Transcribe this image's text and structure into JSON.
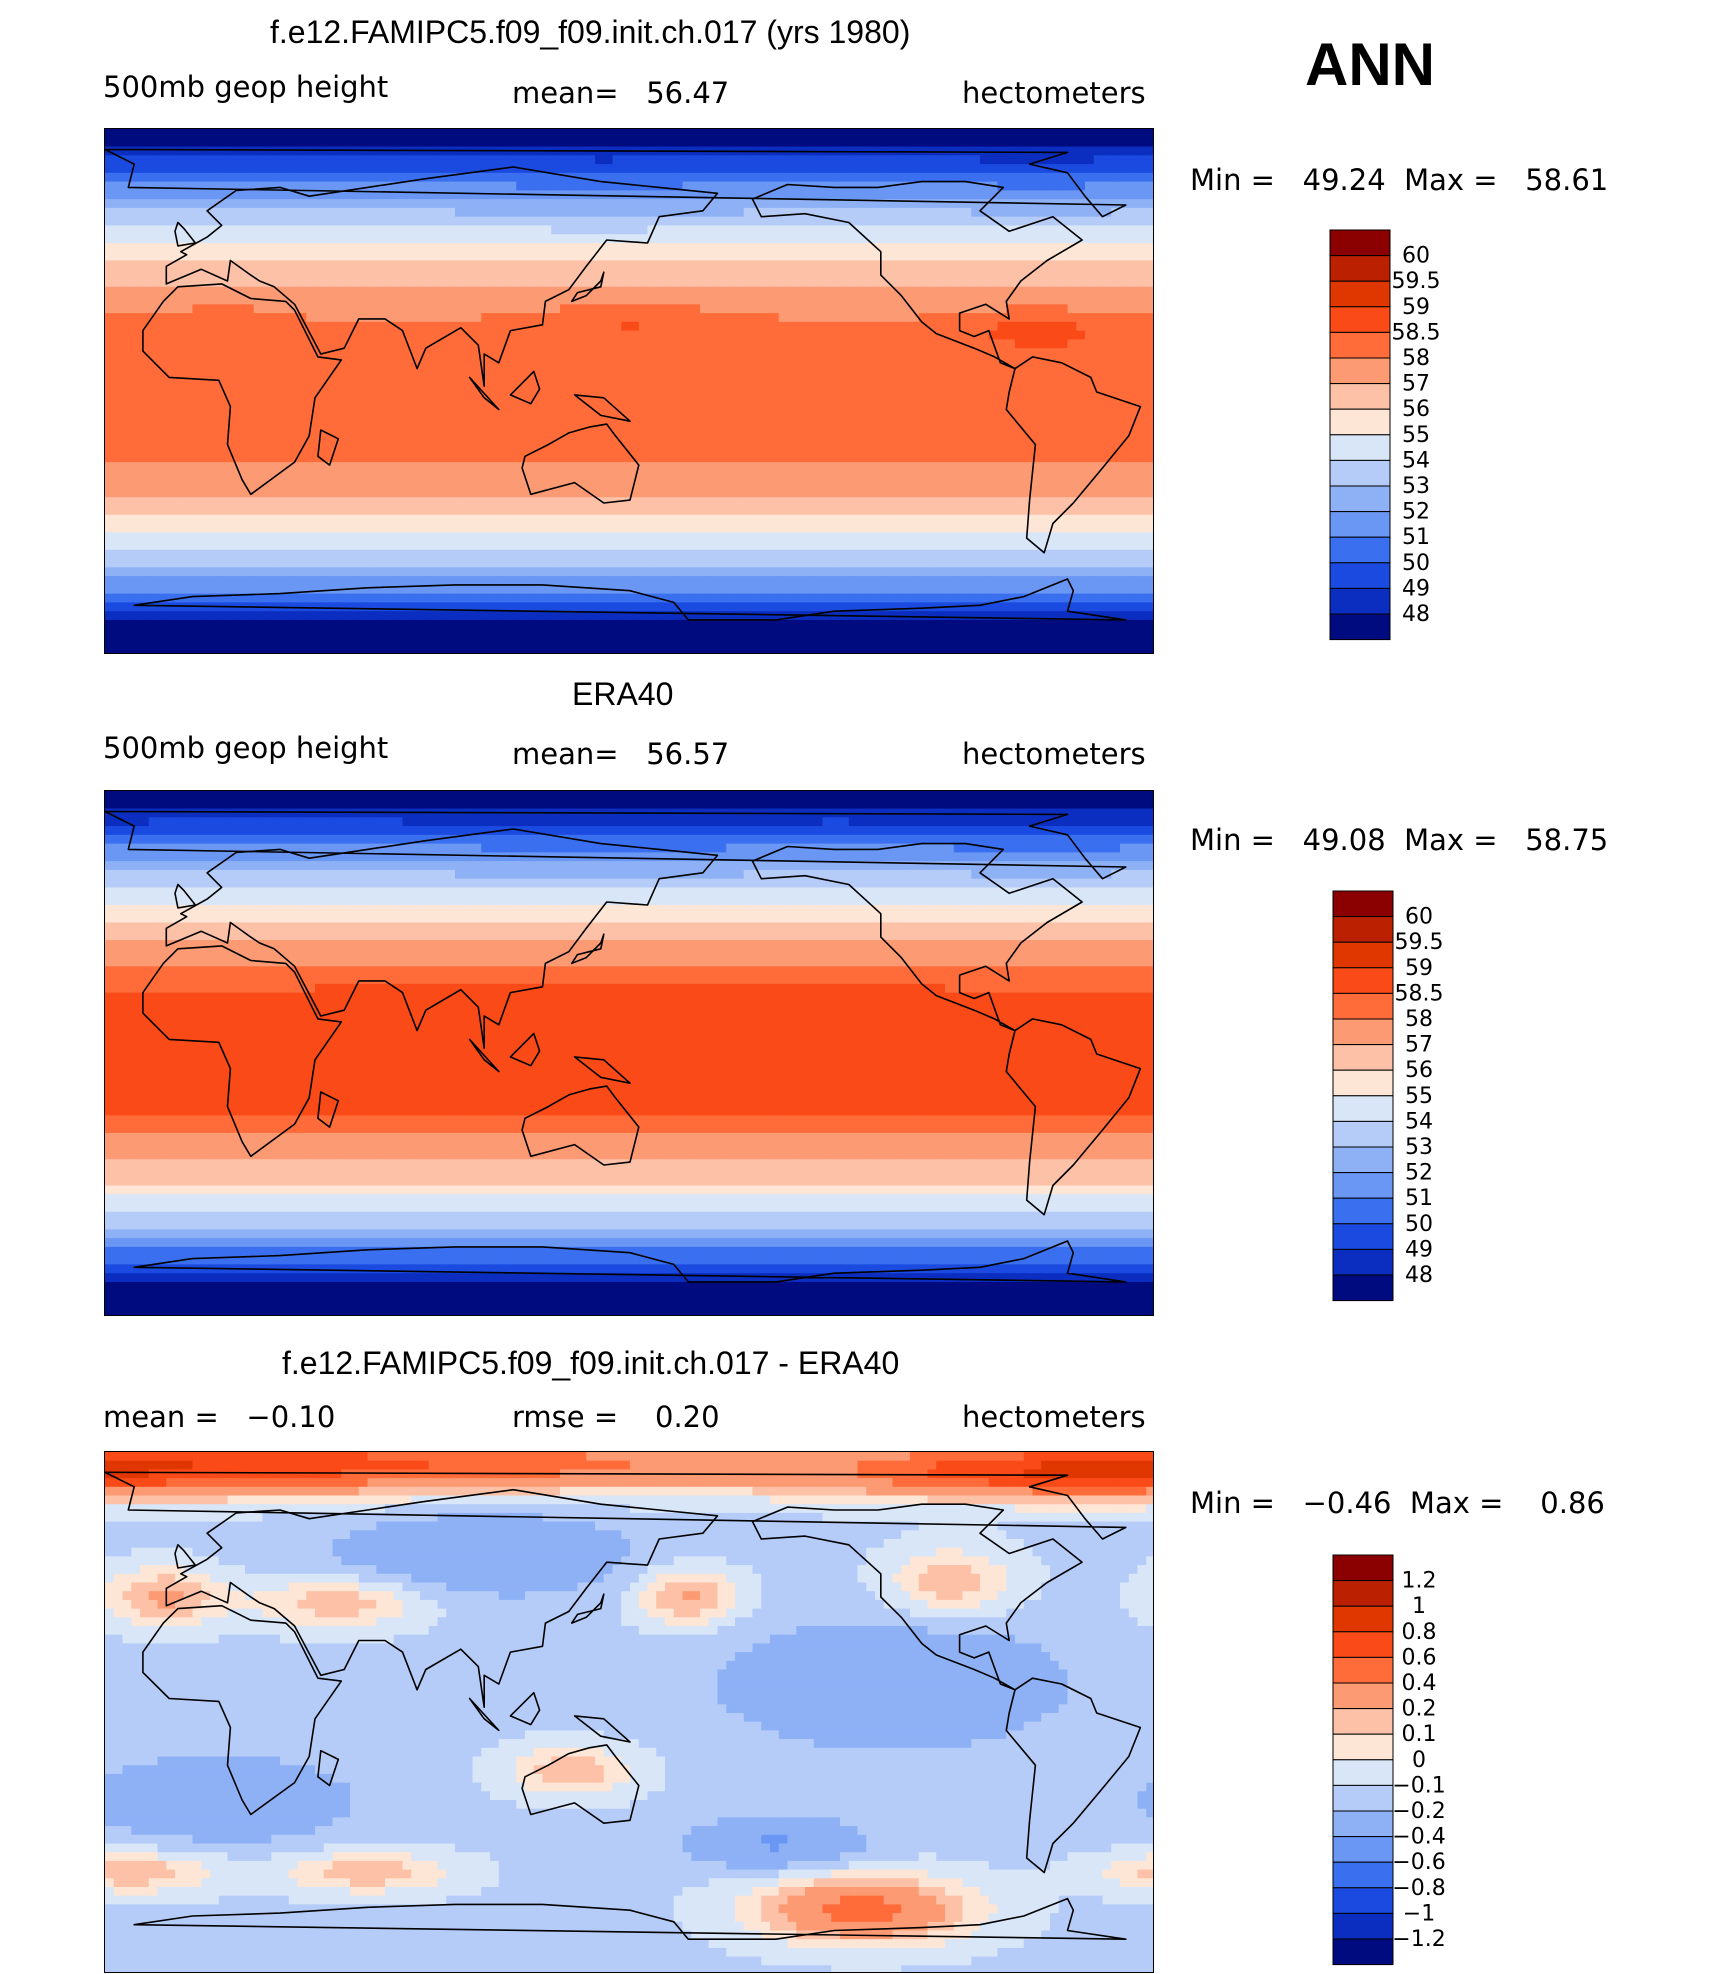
{
  "ann_label": "ANN",
  "chart_data": [
    {
      "type": "heatmap",
      "title": "f.e12.FAMIPC5.f09_f09.init.ch.017 (yrs 1980)",
      "left_label": "500mb geop height",
      "center_label": "mean=   56.47",
      "units": "hectometers",
      "minmax_label": "Min =   49.24  Max =   58.61",
      "colorbar": {
        "levels": [
          "60",
          "59.5",
          "59",
          "58.5",
          "58",
          "57",
          "56",
          "55",
          "54",
          "53",
          "52",
          "51",
          "50",
          "49",
          "48"
        ],
        "colors": [
          "#8b0000",
          "#bb2000",
          "#e03600",
          "#fa4a18",
          "#ff6c3a",
          "#fb9a73",
          "#fcc1a6",
          "#fde6d6",
          "#d8e6f8",
          "#b5ccf8",
          "#8eb1f6",
          "#6a96f4",
          "#3a6ff0",
          "#1a4ae0",
          "#0b2ec0",
          "#000b80"
        ]
      },
      "field": "model"
    },
    {
      "type": "heatmap",
      "title": "ERA40",
      "left_label": "500mb geop height",
      "center_label": "mean=   56.57",
      "units": "hectometers",
      "minmax_label": "Min =   49.08  Max =   58.75",
      "colorbar": {
        "levels": [
          "60",
          "59.5",
          "59",
          "58.5",
          "58",
          "57",
          "56",
          "55",
          "54",
          "53",
          "52",
          "51",
          "50",
          "49",
          "48"
        ],
        "colors": [
          "#8b0000",
          "#bb2000",
          "#e03600",
          "#fa4a18",
          "#ff6c3a",
          "#fb9a73",
          "#fcc1a6",
          "#fde6d6",
          "#d8e6f8",
          "#b5ccf8",
          "#8eb1f6",
          "#6a96f4",
          "#3a6ff0",
          "#1a4ae0",
          "#0b2ec0",
          "#000b80"
        ]
      },
      "field": "obs"
    },
    {
      "type": "heatmap",
      "title": "f.e12.FAMIPC5.f09_f09.init.ch.017 - ERA40",
      "left_label": "mean =   −0.10",
      "center_label": "rmse =    0.20",
      "units": "hectometers",
      "minmax_label": "Min =   −0.46  Max =    0.86",
      "colorbar": {
        "levels": [
          "1.2",
          "1",
          "0.8",
          "0.6",
          "0.4",
          "0.2",
          "0.1",
          "0",
          "−0.1",
          "−0.2",
          "−0.4",
          "−0.6",
          "−0.8",
          "−1",
          "−1.2"
        ],
        "colors": [
          "#8b0000",
          "#bb2000",
          "#e03600",
          "#fa4a18",
          "#ff6c3a",
          "#fb9a73",
          "#fcc1a6",
          "#fde6d6",
          "#d8e6f8",
          "#b5ccf8",
          "#8eb1f6",
          "#6a96f4",
          "#3a6ff0",
          "#1a4ae0",
          "#0b2ec0",
          "#000b80"
        ]
      },
      "field": "diff"
    }
  ]
}
